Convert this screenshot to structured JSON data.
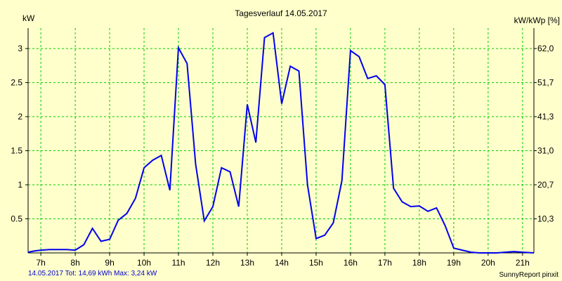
{
  "chart_data": {
    "type": "line",
    "title": "Tagesverlauf 14.05.2017",
    "ylabel_left": "kW",
    "ylabel_right": "kW/kWp [%]",
    "ylim": [
      0,
      3.3
    ],
    "left_ticks": [
      "0.5",
      "1",
      "1.5",
      "2",
      "2.5",
      "3"
    ],
    "left_tick_values": [
      0.5,
      1,
      1.5,
      2,
      2.5,
      3
    ],
    "right_ticks": [
      "10,3",
      "20,7",
      "31,0",
      "41,3",
      "51,7",
      "62,0"
    ],
    "x_ticks": [
      "7h",
      "8h",
      "9h",
      "10h",
      "11h",
      "12h",
      "13h",
      "14h",
      "15h",
      "16h",
      "17h",
      "18h",
      "19h",
      "20h",
      "21h"
    ],
    "x_tick_values": [
      7,
      8,
      9,
      10,
      11,
      12,
      13,
      14,
      15,
      16,
      17,
      18,
      19,
      20,
      21
    ],
    "xlim": [
      6.63,
      21.33
    ],
    "grid": true,
    "series": [
      {
        "color": "#0000ee",
        "points": [
          [
            6.63,
            0.01
          ],
          [
            6.83,
            0.03
          ],
          [
            7.0,
            0.04
          ],
          [
            7.25,
            0.05
          ],
          [
            7.5,
            0.05
          ],
          [
            7.75,
            0.05
          ],
          [
            8.0,
            0.04
          ],
          [
            8.25,
            0.12
          ],
          [
            8.5,
            0.36
          ],
          [
            8.75,
            0.17
          ],
          [
            9.0,
            0.2
          ],
          [
            9.25,
            0.48
          ],
          [
            9.5,
            0.58
          ],
          [
            9.75,
            0.8
          ],
          [
            10.0,
            1.25
          ],
          [
            10.25,
            1.36
          ],
          [
            10.5,
            1.43
          ],
          [
            10.75,
            0.92
          ],
          [
            11.0,
            3.01
          ],
          [
            11.25,
            2.78
          ],
          [
            11.5,
            1.3
          ],
          [
            11.75,
            0.47
          ],
          [
            12.0,
            0.68
          ],
          [
            12.25,
            1.25
          ],
          [
            12.5,
            1.19
          ],
          [
            12.75,
            0.68
          ],
          [
            13.0,
            2.18
          ],
          [
            13.25,
            1.62
          ],
          [
            13.5,
            3.16
          ],
          [
            13.75,
            3.23
          ],
          [
            14.0,
            2.19
          ],
          [
            14.25,
            2.74
          ],
          [
            14.5,
            2.67
          ],
          [
            14.75,
            1.0
          ],
          [
            15.0,
            0.21
          ],
          [
            15.25,
            0.26
          ],
          [
            15.5,
            0.44
          ],
          [
            15.75,
            1.06
          ],
          [
            16.0,
            2.97
          ],
          [
            16.25,
            2.88
          ],
          [
            16.5,
            2.56
          ],
          [
            16.75,
            2.6
          ],
          [
            17.0,
            2.47
          ],
          [
            17.25,
            0.95
          ],
          [
            17.5,
            0.75
          ],
          [
            17.75,
            0.68
          ],
          [
            18.0,
            0.69
          ],
          [
            18.25,
            0.61
          ],
          [
            18.5,
            0.66
          ],
          [
            18.75,
            0.4
          ],
          [
            19.0,
            0.07
          ],
          [
            19.25,
            0.04
          ],
          [
            19.5,
            0.01
          ],
          [
            19.75,
            0.0
          ],
          [
            20.0,
            0.0
          ],
          [
            20.25,
            0.0
          ],
          [
            20.5,
            0.01
          ],
          [
            20.75,
            0.02
          ],
          [
            21.0,
            0.01
          ],
          [
            21.33,
            0.0
          ]
        ]
      }
    ]
  },
  "footer": {
    "info": "14.05.2017 Tot: 14,69 kWh Max: 3,24 kW",
    "credit": "SunnyReport pinxit"
  },
  "colors": {
    "background": "#ffffcc",
    "grid": "#00cc00",
    "line": "#0000ee",
    "axis": "#000000"
  }
}
